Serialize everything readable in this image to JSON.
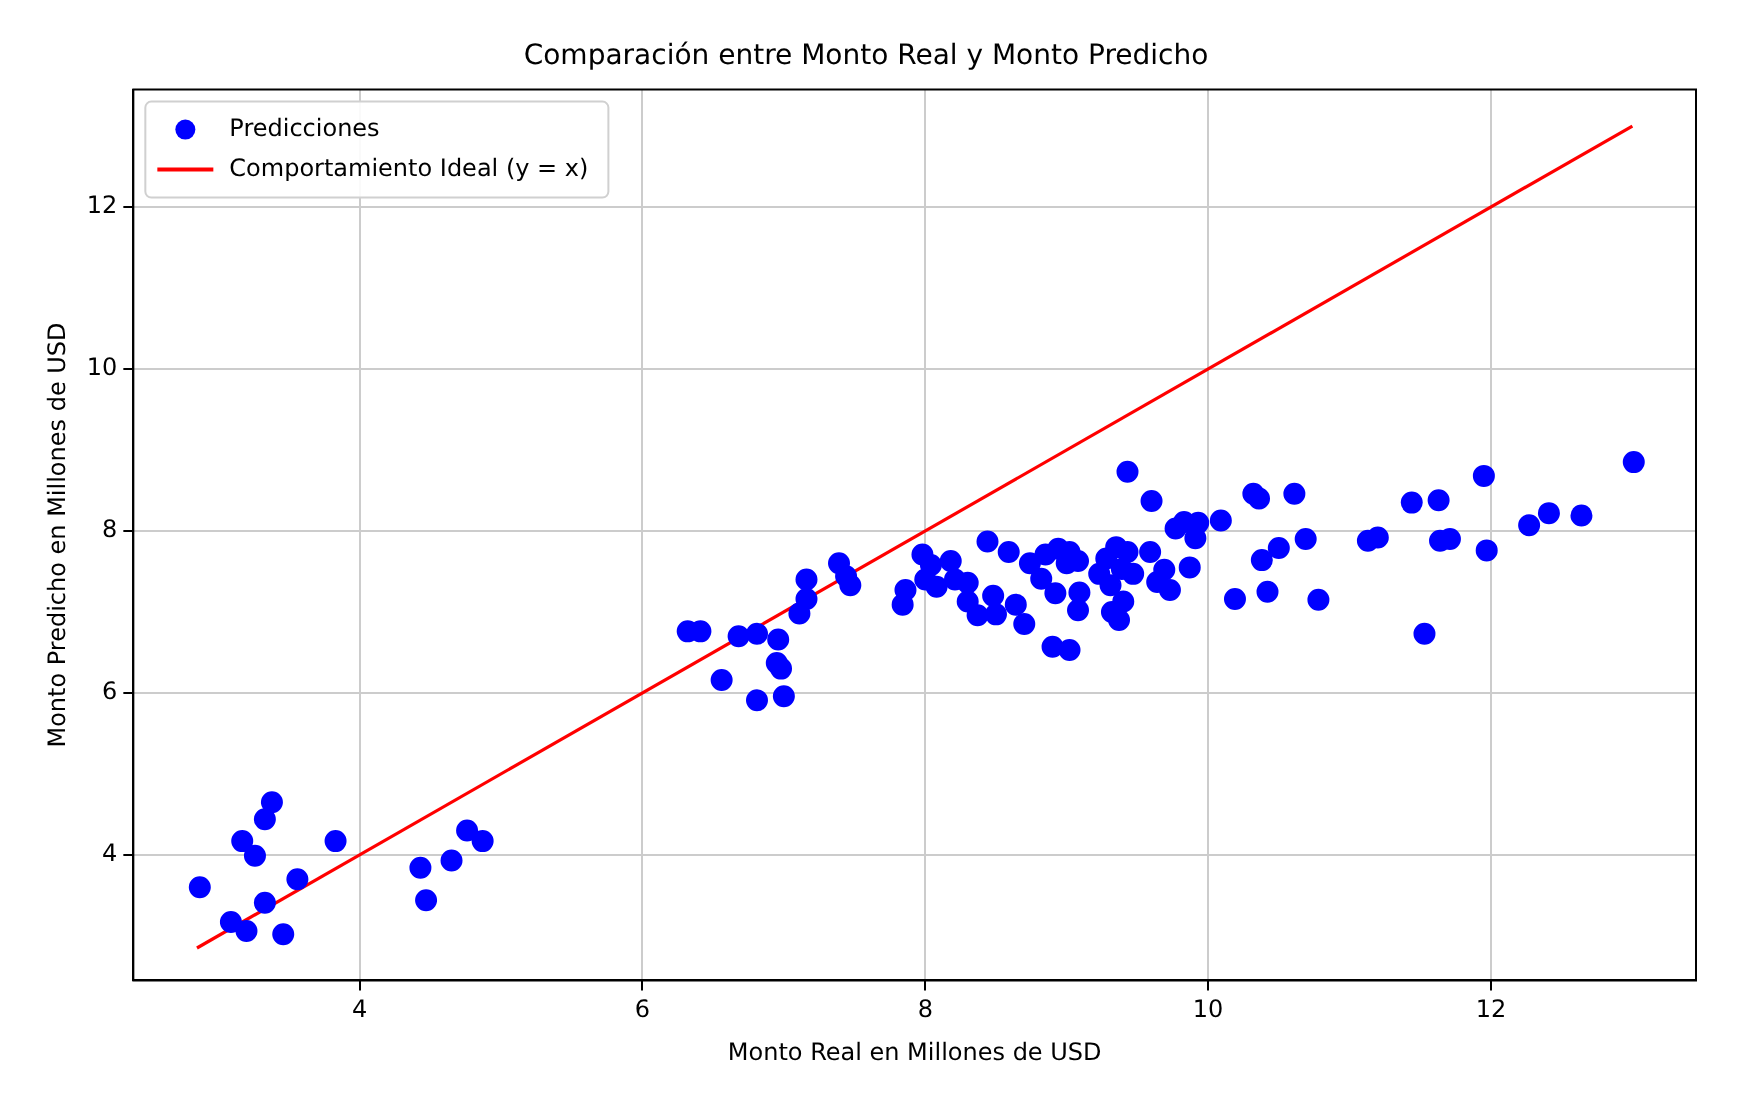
{
  "chart_data": {
    "type": "scatter",
    "title": "Comparación entre Monto Real y Monto Predicho",
    "xlabel": "Monto Real en Millones de USD",
    "ylabel": "Monto Predicho en Millones de USD",
    "xlim": [
      2.4,
      13.45
    ],
    "ylim": [
      2.45,
      13.45
    ],
    "xticks": [
      4,
      6,
      8,
      10,
      12
    ],
    "yticks": [
      4,
      6,
      8,
      10,
      12
    ],
    "grid": true,
    "legend": "top left",
    "marker": "circle",
    "series": [
      {
        "name": "Predicciones",
        "type": "scatter",
        "color": "#0000ff",
        "x": [
          2.87,
          3.09,
          3.2,
          3.17,
          3.26,
          3.33,
          3.38,
          3.33,
          3.46,
          3.56,
          3.83,
          4.43,
          4.47,
          4.65,
          4.76,
          4.87,
          6.32,
          6.41,
          6.56,
          6.68,
          6.81,
          6.81,
          6.96,
          6.95,
          6.98,
          7.0,
          7.11,
          7.16,
          7.16,
          7.39,
          7.44,
          7.47,
          7.84,
          7.86,
          7.98,
          8.0,
          8.08,
          8.04,
          8.18,
          8.21,
          8.3,
          8.3,
          8.37,
          8.44,
          8.48,
          8.5,
          8.59,
          8.64,
          8.7,
          8.74,
          8.82,
          8.85,
          8.9,
          8.92,
          8.94,
          9.02,
          9.02,
          9.0,
          9.08,
          9.08,
          9.09,
          9.23,
          9.28,
          9.31,
          9.32,
          9.35,
          9.39,
          9.37,
          9.4,
          9.43,
          9.43,
          9.47,
          9.59,
          9.6,
          9.64,
          9.69,
          9.73,
          9.77,
          9.83,
          9.87,
          9.91,
          9.93,
          10.09,
          10.19,
          10.32,
          10.36,
          10.38,
          10.42,
          10.5,
          10.61,
          10.69,
          10.78,
          11.13,
          11.2,
          11.44,
          11.53,
          11.63,
          11.64,
          11.71,
          11.95,
          11.97,
          12.27,
          12.41,
          12.64,
          13.01
        ],
        "values": [
          3.6,
          3.17,
          3.06,
          4.17,
          3.99,
          4.44,
          4.65,
          3.41,
          3.02,
          3.7,
          4.17,
          3.84,
          3.44,
          3.93,
          4.3,
          4.17,
          6.76,
          6.76,
          6.16,
          6.7,
          6.73,
          5.91,
          6.66,
          6.37,
          6.3,
          5.96,
          6.98,
          7.4,
          7.16,
          7.6,
          7.44,
          7.33,
          7.09,
          7.27,
          7.71,
          7.4,
          7.31,
          7.58,
          7.63,
          7.4,
          7.36,
          7.13,
          6.96,
          7.87,
          7.2,
          6.97,
          7.74,
          7.09,
          6.85,
          7.6,
          7.41,
          7.71,
          6.57,
          7.23,
          7.78,
          6.53,
          7.74,
          7.6,
          7.63,
          7.02,
          7.24,
          7.47,
          7.66,
          7.33,
          7.0,
          7.8,
          7.53,
          6.9,
          7.13,
          8.73,
          7.74,
          7.47,
          7.74,
          8.37,
          7.37,
          7.52,
          7.27,
          8.03,
          8.11,
          7.55,
          7.91,
          8.1,
          8.13,
          7.16,
          8.46,
          8.4,
          7.64,
          7.25,
          7.79,
          8.46,
          7.9,
          7.15,
          7.88,
          7.92,
          8.35,
          6.73,
          8.38,
          7.88,
          7.9,
          8.68,
          7.76,
          8.07,
          8.22,
          8.19,
          8.85
        ]
      },
      {
        "name": "Comportamiento Ideal (y = x)",
        "type": "line",
        "color": "#ff0000",
        "marker": "none",
        "line_style": "solid",
        "x": [
          2.85,
          13
        ],
        "values": [
          2.85,
          13
        ]
      }
    ]
  }
}
